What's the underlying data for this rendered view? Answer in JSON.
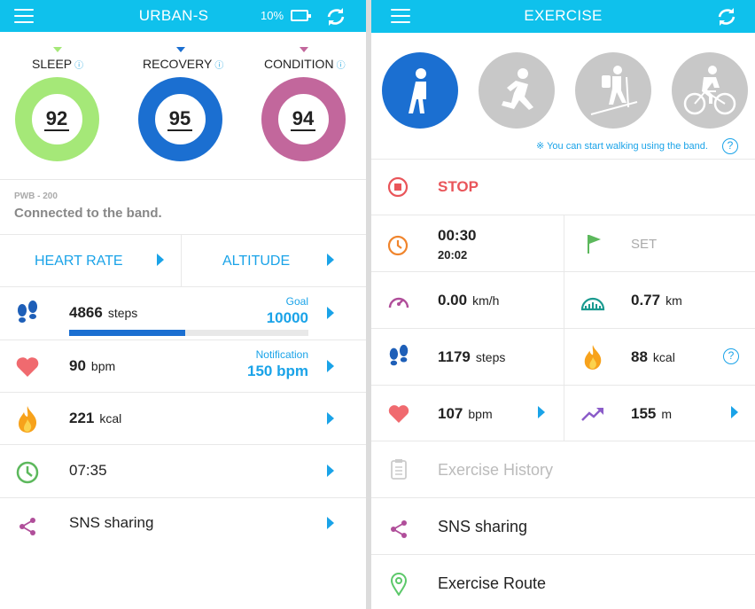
{
  "left": {
    "title": "URBAN-S",
    "battery": "10%",
    "rings": [
      {
        "label": "SLEEP",
        "value": "92",
        "color": "#a5e878",
        "ratio": 0.92
      },
      {
        "label": "RECOVERY",
        "value": "95",
        "color": "#1b6fd1",
        "ratio": 0.95
      },
      {
        "label": "CONDITION",
        "value": "94",
        "color": "#c2679c",
        "ratio": 0.94
      }
    ],
    "device_model": "PWB - 200",
    "device_status": "Connected to the band.",
    "tabs": [
      "HEART RATE",
      "ALTITUDE"
    ],
    "steps": {
      "value": "4866",
      "unit": "steps",
      "goal_label": "Goal",
      "goal_value": "10000",
      "progress": 0.4866
    },
    "heart": {
      "value": "90",
      "unit": "bpm",
      "notif_label": "Notification",
      "notif_value": "150 bpm"
    },
    "calories": {
      "value": "221",
      "unit": "kcal"
    },
    "time": {
      "value": "07:35"
    },
    "sns": {
      "label": "SNS sharing"
    }
  },
  "right": {
    "title": "EXERCISE",
    "hint": "※ You can start walking using the band.",
    "modes": [
      "walking",
      "running",
      "hiking",
      "cycling"
    ],
    "stop_label": "STOP",
    "timer_main": "00:30",
    "timer_sub": "20:02",
    "set_label": "SET",
    "speed": {
      "value": "0.00",
      "unit": "km/h"
    },
    "distance": {
      "value": "0.77",
      "unit": "km"
    },
    "steps": {
      "value": "1179",
      "unit": "steps"
    },
    "calories": {
      "value": "88",
      "unit": "kcal"
    },
    "heart": {
      "value": "107",
      "unit": "bpm"
    },
    "altitude": {
      "value": "155",
      "unit": "m"
    },
    "history_label": "Exercise History",
    "sns_label": "SNS sharing",
    "route_label": "Exercise Route"
  },
  "colors": {
    "accent": "#0fc1ec",
    "blue": "#1aa3e8",
    "stop": "#e9555a",
    "heart": "#f06a6f"
  }
}
